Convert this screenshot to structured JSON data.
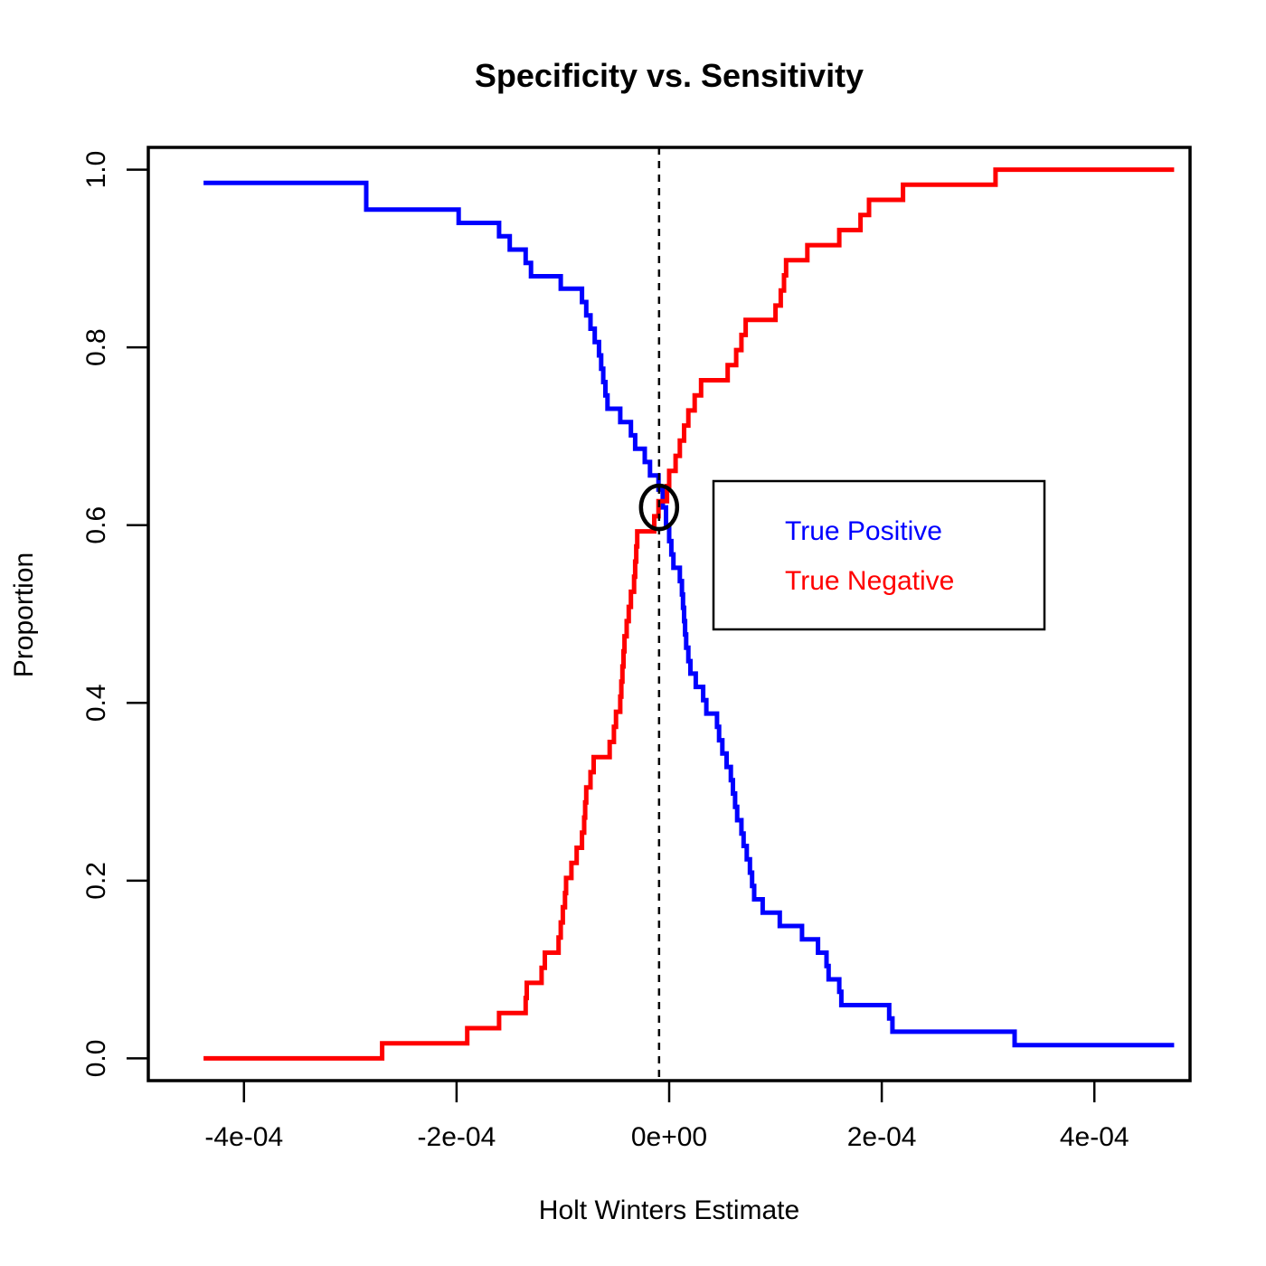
{
  "chart_data": {
    "type": "line",
    "title": "Specificity vs. Sensitivity",
    "xlabel": "Holt Winters Estimate",
    "ylabel": "Proportion",
    "xlim": [
      -0.00049,
      0.00049
    ],
    "ylim": [
      -0.025,
      1.025
    ],
    "x_ticks": [
      -0.0004,
      -0.0002,
      0,
      0.0002,
      0.0004
    ],
    "x_tick_labels": [
      "-4e-04",
      "-2e-04",
      "0e+00",
      "2e-04",
      "4e-04"
    ],
    "y_ticks": [
      0,
      0.2,
      0.4,
      0.6,
      0.8,
      1.0
    ],
    "y_tick_labels": [
      "0.0",
      "0.2",
      "0.4",
      "0.6",
      "0.8",
      "1.0"
    ],
    "grid": false,
    "legend_position": "right",
    "threshold_x": -9.5e-06,
    "marker": {
      "x": -9.5e-06,
      "y": 0.62
    },
    "series": [
      {
        "name": "True Positive",
        "color": "#0000ff",
        "step": true,
        "points": [
          [
            -0.000438,
            0.985
          ],
          [
            -0.000285,
            0.985
          ],
          [
            -0.000285,
            0.955
          ],
          [
            -0.000198,
            0.955
          ],
          [
            -0.000198,
            0.94
          ],
          [
            -0.00016,
            0.94
          ],
          [
            -0.00016,
            0.925
          ],
          [
            -0.00015,
            0.925
          ],
          [
            -0.00015,
            0.91
          ],
          [
            -0.000135,
            0.91
          ],
          [
            -0.000135,
            0.895
          ],
          [
            -0.00013,
            0.895
          ],
          [
            -0.00013,
            0.88
          ],
          [
            -0.000102,
            0.88
          ],
          [
            -0.000102,
            0.866
          ],
          [
            -8.2e-05,
            0.866
          ],
          [
            -8.2e-05,
            0.851
          ],
          [
            -7.8e-05,
            0.851
          ],
          [
            -7.8e-05,
            0.836
          ],
          [
            -7.4e-05,
            0.836
          ],
          [
            -7.4e-05,
            0.821
          ],
          [
            -7e-05,
            0.821
          ],
          [
            -7e-05,
            0.806
          ],
          [
            -6.6e-05,
            0.806
          ],
          [
            -6.6e-05,
            0.791
          ],
          [
            -6.4e-05,
            0.791
          ],
          [
            -6.4e-05,
            0.776
          ],
          [
            -6.2e-05,
            0.776
          ],
          [
            -6.2e-05,
            0.761
          ],
          [
            -6e-05,
            0.761
          ],
          [
            -6e-05,
            0.746
          ],
          [
            -5.8e-05,
            0.746
          ],
          [
            -5.8e-05,
            0.731
          ],
          [
            -4.6e-05,
            0.731
          ],
          [
            -4.6e-05,
            0.716
          ],
          [
            -3.6e-05,
            0.716
          ],
          [
            -3.6e-05,
            0.701
          ],
          [
            -3.2e-05,
            0.701
          ],
          [
            -3.2e-05,
            0.686
          ],
          [
            -2.3e-05,
            0.686
          ],
          [
            -2.3e-05,
            0.671
          ],
          [
            -1.8e-05,
            0.671
          ],
          [
            -1.8e-05,
            0.656
          ],
          [
            -1e-05,
            0.656
          ],
          [
            -1e-05,
            0.64
          ],
          [
            -6e-06,
            0.64
          ],
          [
            -6e-06,
            0.62
          ],
          [
            -3e-06,
            0.62
          ],
          [
            -3e-06,
            0.6
          ],
          [
            0.0,
            0.6
          ],
          [
            0.0,
            0.582
          ],
          [
            2e-06,
            0.582
          ],
          [
            2e-06,
            0.567
          ],
          [
            4e-06,
            0.567
          ],
          [
            4e-06,
            0.552
          ],
          [
            1e-05,
            0.552
          ],
          [
            1e-05,
            0.537
          ],
          [
            1.2e-05,
            0.537
          ],
          [
            1.2e-05,
            0.522
          ],
          [
            1.3e-05,
            0.522
          ],
          [
            1.3e-05,
            0.507
          ],
          [
            1.4e-05,
            0.507
          ],
          [
            1.4e-05,
            0.492
          ],
          [
            1.5e-05,
            0.492
          ],
          [
            1.5e-05,
            0.477
          ],
          [
            1.6e-05,
            0.477
          ],
          [
            1.6e-05,
            0.462
          ],
          [
            1.8e-05,
            0.462
          ],
          [
            1.8e-05,
            0.447
          ],
          [
            2e-05,
            0.447
          ],
          [
            2e-05,
            0.433
          ],
          [
            2.5e-05,
            0.433
          ],
          [
            2.5e-05,
            0.418
          ],
          [
            3.2e-05,
            0.418
          ],
          [
            3.2e-05,
            0.403
          ],
          [
            3.5e-05,
            0.403
          ],
          [
            3.5e-05,
            0.388
          ],
          [
            4.5e-05,
            0.388
          ],
          [
            4.5e-05,
            0.373
          ],
          [
            4.7e-05,
            0.373
          ],
          [
            4.7e-05,
            0.358
          ],
          [
            5e-05,
            0.358
          ],
          [
            5e-05,
            0.343
          ],
          [
            5.4e-05,
            0.343
          ],
          [
            5.4e-05,
            0.328
          ],
          [
            5.8e-05,
            0.328
          ],
          [
            5.8e-05,
            0.313
          ],
          [
            6e-05,
            0.313
          ],
          [
            6e-05,
            0.298
          ],
          [
            6.2e-05,
            0.298
          ],
          [
            6.2e-05,
            0.283
          ],
          [
            6.4e-05,
            0.283
          ],
          [
            6.4e-05,
            0.268
          ],
          [
            6.8e-05,
            0.268
          ],
          [
            6.8e-05,
            0.253
          ],
          [
            7e-05,
            0.253
          ],
          [
            7e-05,
            0.239
          ],
          [
            7.3e-05,
            0.239
          ],
          [
            7.3e-05,
            0.224
          ],
          [
            7.6e-05,
            0.224
          ],
          [
            7.6e-05,
            0.209
          ],
          [
            7.8e-05,
            0.209
          ],
          [
            7.8e-05,
            0.194
          ],
          [
            8e-05,
            0.194
          ],
          [
            8e-05,
            0.179
          ],
          [
            8.8e-05,
            0.179
          ],
          [
            8.8e-05,
            0.164
          ],
          [
            0.000104,
            0.164
          ],
          [
            0.000104,
            0.149
          ],
          [
            0.000125,
            0.149
          ],
          [
            0.000125,
            0.134
          ],
          [
            0.00014,
            0.134
          ],
          [
            0.00014,
            0.119
          ],
          [
            0.000148,
            0.119
          ],
          [
            0.000148,
            0.104
          ],
          [
            0.00015,
            0.104
          ],
          [
            0.00015,
            0.089
          ],
          [
            0.00016,
            0.089
          ],
          [
            0.00016,
            0.075
          ],
          [
            0.000162,
            0.075
          ],
          [
            0.000162,
            0.06
          ],
          [
            0.000207,
            0.06
          ],
          [
            0.000207,
            0.045
          ],
          [
            0.00021,
            0.045
          ],
          [
            0.00021,
            0.03
          ],
          [
            0.000325,
            0.03
          ],
          [
            0.000325,
            0.015
          ],
          [
            0.000475,
            0.015
          ]
        ]
      },
      {
        "name": "True Negative",
        "color": "#ff0000",
        "step": true,
        "points": [
          [
            -0.000438,
            0.0
          ],
          [
            -0.00027,
            0.0
          ],
          [
            -0.00027,
            0.017
          ],
          [
            -0.00019,
            0.017
          ],
          [
            -0.00019,
            0.034
          ],
          [
            -0.00016,
            0.034
          ],
          [
            -0.00016,
            0.051
          ],
          [
            -0.000135,
            0.051
          ],
          [
            -0.000135,
            0.068
          ],
          [
            -0.000134,
            0.068
          ],
          [
            -0.000134,
            0.085
          ],
          [
            -0.00012,
            0.085
          ],
          [
            -0.00012,
            0.102
          ],
          [
            -0.000117,
            0.102
          ],
          [
            -0.000117,
            0.119
          ],
          [
            -0.000104,
            0.119
          ],
          [
            -0.000104,
            0.136
          ],
          [
            -0.000102,
            0.136
          ],
          [
            -0.000102,
            0.153
          ],
          [
            -0.0001,
            0.153
          ],
          [
            -0.0001,
            0.17
          ],
          [
            -9.8e-05,
            0.17
          ],
          [
            -9.8e-05,
            0.186
          ],
          [
            -9.7e-05,
            0.186
          ],
          [
            -9.7e-05,
            0.203
          ],
          [
            -9.2e-05,
            0.203
          ],
          [
            -9.2e-05,
            0.22
          ],
          [
            -8.7e-05,
            0.22
          ],
          [
            -8.7e-05,
            0.237
          ],
          [
            -8.2e-05,
            0.237
          ],
          [
            -8.2e-05,
            0.254
          ],
          [
            -8e-05,
            0.254
          ],
          [
            -8e-05,
            0.271
          ],
          [
            -7.9e-05,
            0.271
          ],
          [
            -7.9e-05,
            0.288
          ],
          [
            -7.8e-05,
            0.288
          ],
          [
            -7.8e-05,
            0.305
          ],
          [
            -7.4e-05,
            0.305
          ],
          [
            -7.4e-05,
            0.322
          ],
          [
            -7.1e-05,
            0.322
          ],
          [
            -7.1e-05,
            0.339
          ],
          [
            -5.6e-05,
            0.339
          ],
          [
            -5.6e-05,
            0.356
          ],
          [
            -5.2e-05,
            0.356
          ],
          [
            -5.2e-05,
            0.373
          ],
          [
            -5e-05,
            0.373
          ],
          [
            -5e-05,
            0.39
          ],
          [
            -4.6e-05,
            0.39
          ],
          [
            -4.6e-05,
            0.407
          ],
          [
            -4.5e-05,
            0.407
          ],
          [
            -4.5e-05,
            0.424
          ],
          [
            -4.4e-05,
            0.424
          ],
          [
            -4.4e-05,
            0.441
          ],
          [
            -4.3e-05,
            0.441
          ],
          [
            -4.3e-05,
            0.458
          ],
          [
            -4.2e-05,
            0.458
          ],
          [
            -4.2e-05,
            0.475
          ],
          [
            -4e-05,
            0.475
          ],
          [
            -4e-05,
            0.492
          ],
          [
            -3.8e-05,
            0.492
          ],
          [
            -3.8e-05,
            0.508
          ],
          [
            -3.6e-05,
            0.508
          ],
          [
            -3.6e-05,
            0.525
          ],
          [
            -3.3e-05,
            0.525
          ],
          [
            -3.3e-05,
            0.542
          ],
          [
            -3.2e-05,
            0.542
          ],
          [
            -3.2e-05,
            0.559
          ],
          [
            -3.1e-05,
            0.559
          ],
          [
            -3.1e-05,
            0.576
          ],
          [
            -3e-05,
            0.576
          ],
          [
            -3e-05,
            0.593
          ],
          [
            -1.4e-05,
            0.593
          ],
          [
            -1.4e-05,
            0.61
          ],
          [
            -1e-05,
            0.61
          ],
          [
            -1e-05,
            0.627
          ],
          [
            -2e-06,
            0.627
          ],
          [
            -2e-06,
            0.644
          ],
          [
            0.0,
            0.644
          ],
          [
            0.0,
            0.661
          ],
          [
            6e-06,
            0.661
          ],
          [
            6e-06,
            0.678
          ],
          [
            1e-05,
            0.678
          ],
          [
            1e-05,
            0.695
          ],
          [
            1.4e-05,
            0.695
          ],
          [
            1.4e-05,
            0.712
          ],
          [
            1.8e-05,
            0.712
          ],
          [
            1.8e-05,
            0.729
          ],
          [
            2.4e-05,
            0.729
          ],
          [
            2.4e-05,
            0.746
          ],
          [
            3e-05,
            0.746
          ],
          [
            3e-05,
            0.763
          ],
          [
            5.5e-05,
            0.763
          ],
          [
            5.5e-05,
            0.78
          ],
          [
            6.3e-05,
            0.78
          ],
          [
            6.3e-05,
            0.797
          ],
          [
            6.8e-05,
            0.797
          ],
          [
            6.8e-05,
            0.814
          ],
          [
            7.2e-05,
            0.814
          ],
          [
            7.2e-05,
            0.831
          ],
          [
            0.0001,
            0.831
          ],
          [
            0.0001,
            0.847
          ],
          [
            0.000105,
            0.847
          ],
          [
            0.000105,
            0.864
          ],
          [
            0.000108,
            0.864
          ],
          [
            0.000108,
            0.881
          ],
          [
            0.00011,
            0.881
          ],
          [
            0.00011,
            0.898
          ],
          [
            0.00013,
            0.898
          ],
          [
            0.00013,
            0.915
          ],
          [
            0.00016,
            0.915
          ],
          [
            0.00016,
            0.932
          ],
          [
            0.00018,
            0.932
          ],
          [
            0.00018,
            0.949
          ],
          [
            0.000188,
            0.949
          ],
          [
            0.000188,
            0.966
          ],
          [
            0.00022,
            0.966
          ],
          [
            0.00022,
            0.983
          ],
          [
            0.000307,
            0.983
          ],
          [
            0.000307,
            1.0
          ],
          [
            0.000475,
            1.0
          ]
        ]
      }
    ]
  }
}
